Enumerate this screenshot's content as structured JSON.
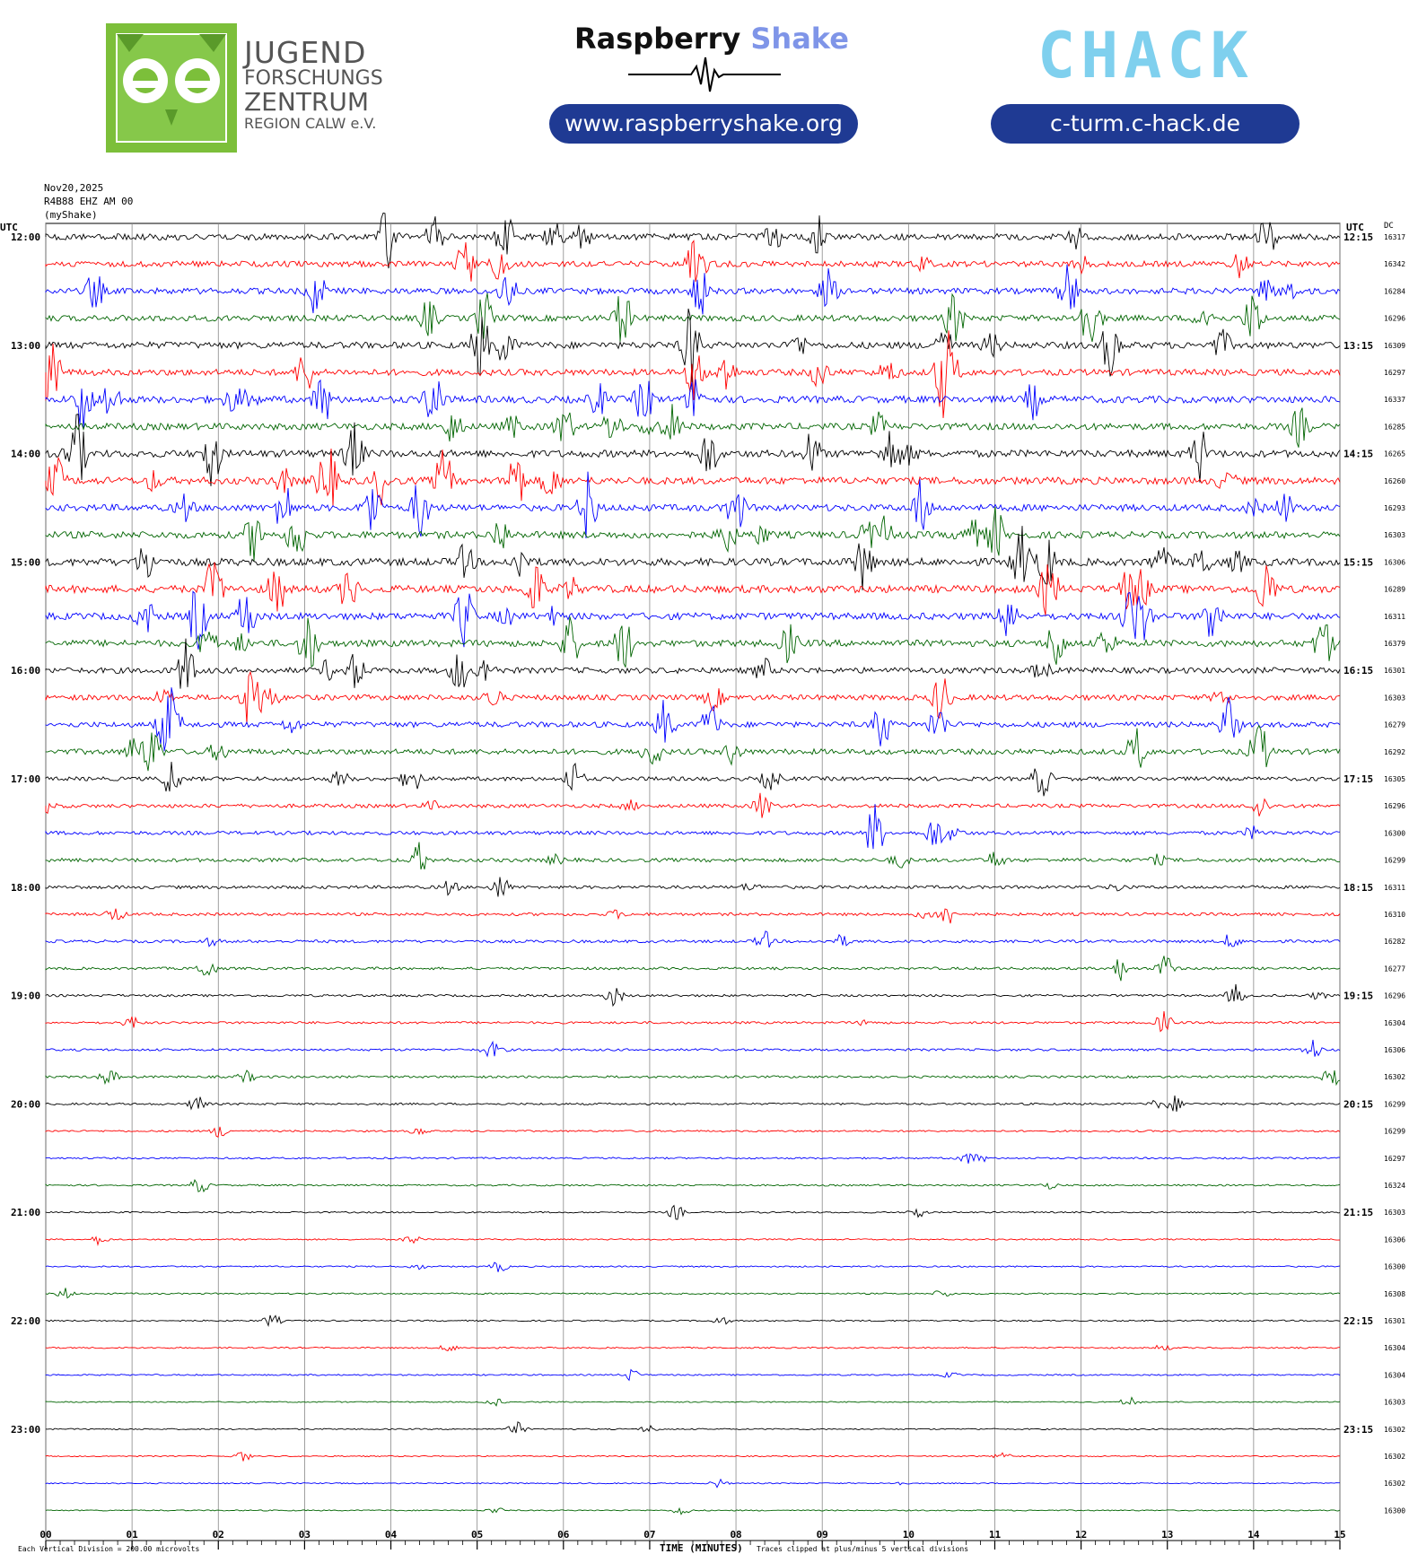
{
  "header": {
    "jfz_line1": "JUGEND",
    "jfz_line2": "FORSCHUNGS",
    "jfz_line3": "ZENTRUM",
    "jfz_line4": "REGION CALW e.V.",
    "rs_brand_a": "Raspberry",
    "rs_brand_b": "Shake",
    "rs_url": "www.raspberryshake.org",
    "chack_logo": "CHACK",
    "chack_url": "c-turm.c-hack.de"
  },
  "chart_data": {
    "type": "line",
    "info": [
      "Nov20,2025",
      "R4B88 EHZ AM 00",
      "(myShake)"
    ],
    "left_utc_label": "UTC",
    "right_utc_label": "UTC",
    "dc_label": "DC",
    "xlabel": "TIME (MINUTES)",
    "xlim": [
      0,
      15
    ],
    "x_ticks": [
      "00",
      "01",
      "02",
      "03",
      "04",
      "05",
      "06",
      "07",
      "08",
      "09",
      "10",
      "11",
      "12",
      "13",
      "14",
      "15"
    ],
    "left_hour_labels": [
      "12:00",
      "13:00",
      "14:00",
      "15:00",
      "16:00",
      "17:00",
      "18:00",
      "19:00",
      "20:00",
      "21:00",
      "22:00",
      "23:00"
    ],
    "right_hour_labels": [
      "12:15",
      "13:15",
      "14:15",
      "15:15",
      "16:15",
      "17:15",
      "18:15",
      "19:15",
      "20:15",
      "21:15",
      "22:15",
      "23:15"
    ],
    "dc_values": [
      "16317",
      "16342",
      "16284",
      "16296",
      "16309",
      "16297",
      "16337",
      "16285",
      "16265",
      "16260",
      "16293",
      "16303",
      "16306",
      "16289",
      "16311",
      "16379",
      "16301",
      "16303",
      "16279",
      "16292",
      "16305",
      "16296",
      "16300",
      "16299",
      "16311",
      "16310",
      "16282",
      "16277",
      "16296",
      "16304",
      "16306",
      "16302",
      "16299",
      "16299",
      "16297",
      "16324",
      "16303",
      "16306",
      "16300",
      "16308",
      "16301",
      "16304",
      "16304",
      "16303",
      "16302",
      "16302",
      "16302",
      "16300"
    ],
    "trace_colors": [
      "#000000",
      "#ff0000",
      "#0000ff",
      "#006400"
    ],
    "trace_activity": [
      2.2,
      2.0,
      2.1,
      2.1,
      2.3,
      2.2,
      2.4,
      2.3,
      2.5,
      2.5,
      2.3,
      2.4,
      2.6,
      2.6,
      2.4,
      2.3,
      2.0,
      1.9,
      1.9,
      1.9,
      1.4,
      1.3,
      1.3,
      1.3,
      1.1,
      1.0,
      1.0,
      0.9,
      0.8,
      0.8,
      0.8,
      0.8,
      0.7,
      0.6,
      0.6,
      0.6,
      0.5,
      0.5,
      0.5,
      0.5,
      0.5,
      0.5,
      0.5,
      0.4,
      0.45,
      0.4,
      0.4,
      0.4
    ],
    "footer_left": "Each Vertical Division =  200.00 microvolts",
    "footer_right": "Traces clipped at plus/minus 5 vertical divisions"
  }
}
